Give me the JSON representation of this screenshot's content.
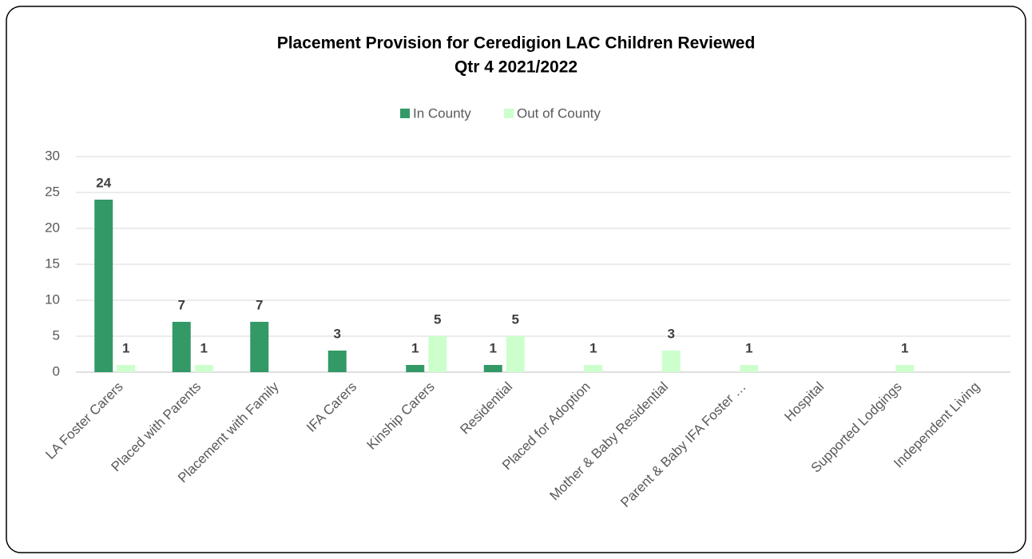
{
  "chart_data": {
    "type": "bar",
    "title": [
      "Placement Provision for Ceredigion LAC Children Reviewed",
      "Qtr 4 2021/2022"
    ],
    "categories": [
      "LA Foster Carers",
      "Placed with Parents",
      "Placement with Family",
      "IFA Carers",
      "Kinship Carers",
      "Residential",
      "Placed for Adoption",
      "Mother & Baby Residential",
      "Parent & Baby IFA Foster …",
      "Hospital",
      "Supported Lodgings",
      "Independent Living"
    ],
    "series": [
      {
        "name": "In County",
        "color": "#339966",
        "values": [
          24,
          7,
          7,
          3,
          1,
          1,
          null,
          null,
          null,
          null,
          null,
          null
        ]
      },
      {
        "name": "Out of County",
        "color": "#ccffcc",
        "values": [
          1,
          1,
          null,
          null,
          5,
          5,
          1,
          3,
          1,
          null,
          1,
          null
        ]
      }
    ],
    "ylim": [
      0,
      30
    ],
    "yticks": [
      0,
      5,
      10,
      15,
      20,
      25,
      30
    ],
    "grid": true,
    "legend": "top"
  }
}
